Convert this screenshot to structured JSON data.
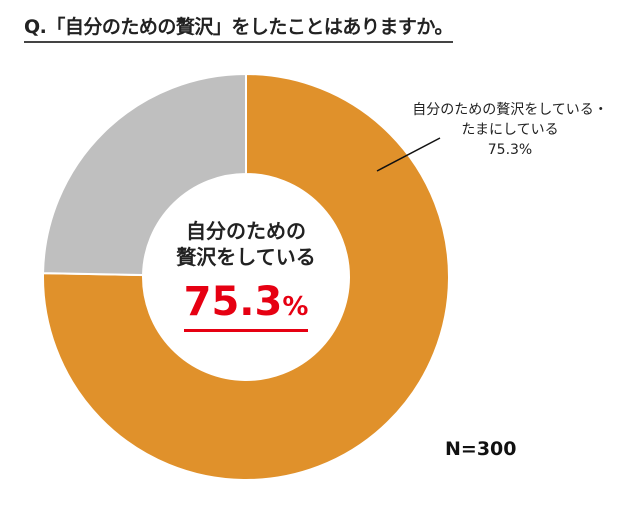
{
  "title": "Q.「自分のための贅沢」をしたことはありますか。",
  "chart_data": {
    "type": "pie",
    "donut": true,
    "slices": [
      {
        "label": "自分のための贅沢をしている・たまにしている",
        "value": 75.3,
        "color": "#e0912b"
      },
      {
        "label": "",
        "value": 24.7,
        "color": "#bfbfbf"
      }
    ],
    "annotation_label_line1": "自分のための贅沢をしている・",
    "annotation_label_line2": "たまにしている",
    "annotation_value": "75.3%",
    "center_text_line1": "自分のための",
    "center_text_line2": "贅沢をしている",
    "center_value": "75.3",
    "center_value_unit": "%",
    "sample_size": "N=300"
  }
}
